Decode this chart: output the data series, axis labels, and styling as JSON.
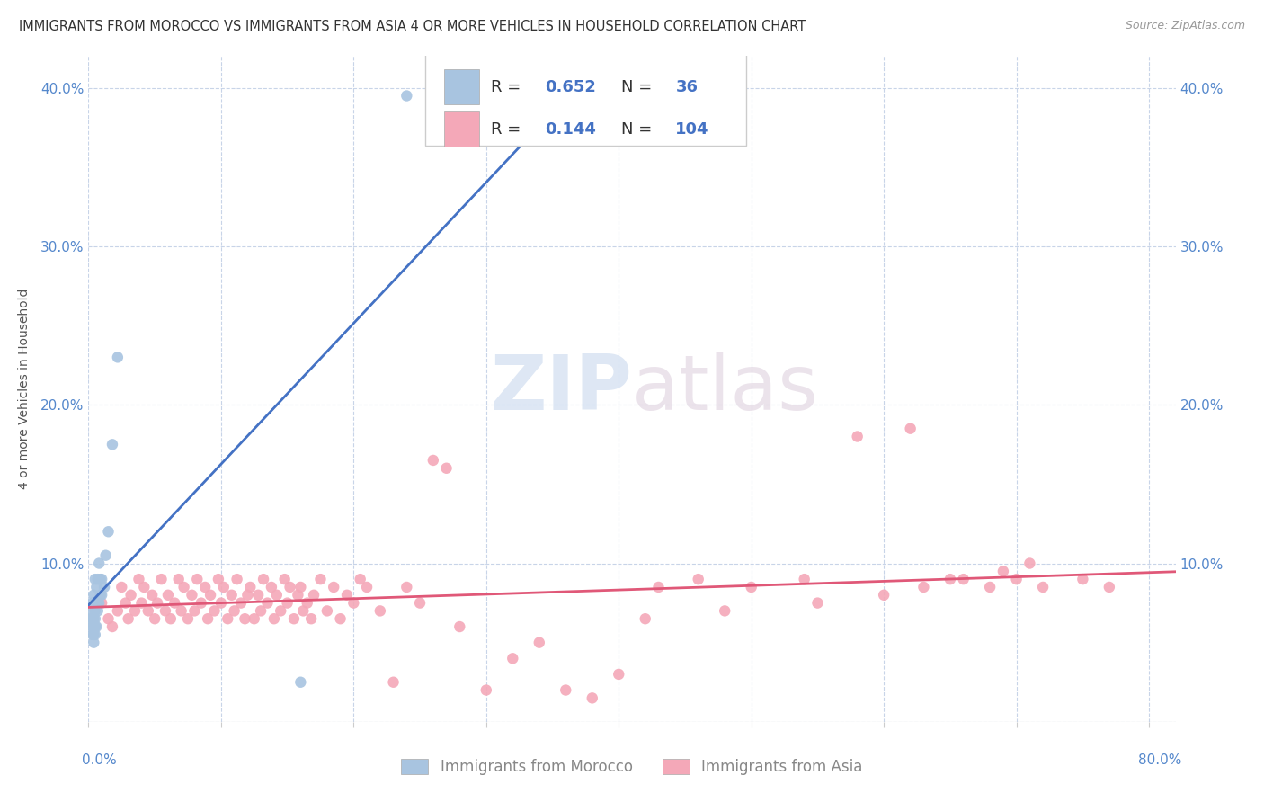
{
  "title": "IMMIGRANTS FROM MOROCCO VS IMMIGRANTS FROM ASIA 4 OR MORE VEHICLES IN HOUSEHOLD CORRELATION CHART",
  "source": "Source: ZipAtlas.com",
  "ylabel": "4 or more Vehicles in Household",
  "morocco_color": "#a8c4e0",
  "asia_color": "#f4a8b8",
  "morocco_R": 0.652,
  "morocco_N": 36,
  "asia_R": 0.144,
  "asia_N": 104,
  "trend_morocco_color": "#4472c4",
  "trend_asia_color": "#e05878",
  "background_color": "#ffffff",
  "grid_color": "#c8d4e8",
  "title_fontsize": 10.5,
  "source_fontsize": 9,
  "ylim": [
    0.0,
    0.42
  ],
  "xlim": [
    0.0,
    0.82
  ],
  "yticks": [
    0.0,
    0.1,
    0.2,
    0.3,
    0.4
  ],
  "xticks": [
    0.0,
    0.1,
    0.2,
    0.3,
    0.4,
    0.5,
    0.6,
    0.7,
    0.8
  ],
  "morocco_scatter_x": [
    0.002,
    0.002,
    0.003,
    0.003,
    0.003,
    0.003,
    0.004,
    0.004,
    0.004,
    0.004,
    0.004,
    0.005,
    0.005,
    0.005,
    0.005,
    0.005,
    0.005,
    0.006,
    0.006,
    0.006,
    0.007,
    0.007,
    0.007,
    0.008,
    0.008,
    0.009,
    0.009,
    0.01,
    0.01,
    0.012,
    0.013,
    0.015,
    0.018,
    0.022,
    0.16,
    0.24
  ],
  "morocco_scatter_y": [
    0.065,
    0.07,
    0.055,
    0.06,
    0.065,
    0.075,
    0.05,
    0.055,
    0.06,
    0.065,
    0.08,
    0.055,
    0.06,
    0.065,
    0.07,
    0.075,
    0.09,
    0.06,
    0.075,
    0.085,
    0.07,
    0.075,
    0.09,
    0.075,
    0.1,
    0.08,
    0.09,
    0.08,
    0.09,
    0.085,
    0.105,
    0.12,
    0.175,
    0.23,
    0.025,
    0.395
  ],
  "asia_scatter_x": [
    0.01,
    0.015,
    0.018,
    0.022,
    0.025,
    0.028,
    0.03,
    0.032,
    0.035,
    0.038,
    0.04,
    0.042,
    0.045,
    0.048,
    0.05,
    0.052,
    0.055,
    0.058,
    0.06,
    0.062,
    0.065,
    0.068,
    0.07,
    0.072,
    0.075,
    0.078,
    0.08,
    0.082,
    0.085,
    0.088,
    0.09,
    0.092,
    0.095,
    0.098,
    0.1,
    0.102,
    0.105,
    0.108,
    0.11,
    0.112,
    0.115,
    0.118,
    0.12,
    0.122,
    0.125,
    0.128,
    0.13,
    0.132,
    0.135,
    0.138,
    0.14,
    0.142,
    0.145,
    0.148,
    0.15,
    0.152,
    0.155,
    0.158,
    0.16,
    0.162,
    0.165,
    0.168,
    0.17,
    0.175,
    0.18,
    0.185,
    0.19,
    0.195,
    0.2,
    0.205,
    0.21,
    0.22,
    0.23,
    0.24,
    0.25,
    0.26,
    0.27,
    0.28,
    0.3,
    0.32,
    0.34,
    0.36,
    0.38,
    0.4,
    0.43,
    0.46,
    0.5,
    0.54,
    0.58,
    0.62,
    0.65,
    0.68,
    0.7,
    0.72,
    0.75,
    0.77,
    0.42,
    0.48,
    0.55,
    0.6,
    0.63,
    0.66,
    0.69,
    0.71
  ],
  "asia_scatter_y": [
    0.075,
    0.065,
    0.06,
    0.07,
    0.085,
    0.075,
    0.065,
    0.08,
    0.07,
    0.09,
    0.075,
    0.085,
    0.07,
    0.08,
    0.065,
    0.075,
    0.09,
    0.07,
    0.08,
    0.065,
    0.075,
    0.09,
    0.07,
    0.085,
    0.065,
    0.08,
    0.07,
    0.09,
    0.075,
    0.085,
    0.065,
    0.08,
    0.07,
    0.09,
    0.075,
    0.085,
    0.065,
    0.08,
    0.07,
    0.09,
    0.075,
    0.065,
    0.08,
    0.085,
    0.065,
    0.08,
    0.07,
    0.09,
    0.075,
    0.085,
    0.065,
    0.08,
    0.07,
    0.09,
    0.075,
    0.085,
    0.065,
    0.08,
    0.085,
    0.07,
    0.075,
    0.065,
    0.08,
    0.09,
    0.07,
    0.085,
    0.065,
    0.08,
    0.075,
    0.09,
    0.085,
    0.07,
    0.025,
    0.085,
    0.075,
    0.165,
    0.16,
    0.06,
    0.02,
    0.04,
    0.05,
    0.02,
    0.015,
    0.03,
    0.085,
    0.09,
    0.085,
    0.09,
    0.18,
    0.185,
    0.09,
    0.085,
    0.09,
    0.085,
    0.09,
    0.085,
    0.065,
    0.07,
    0.075,
    0.08,
    0.085,
    0.09,
    0.095,
    0.1
  ]
}
